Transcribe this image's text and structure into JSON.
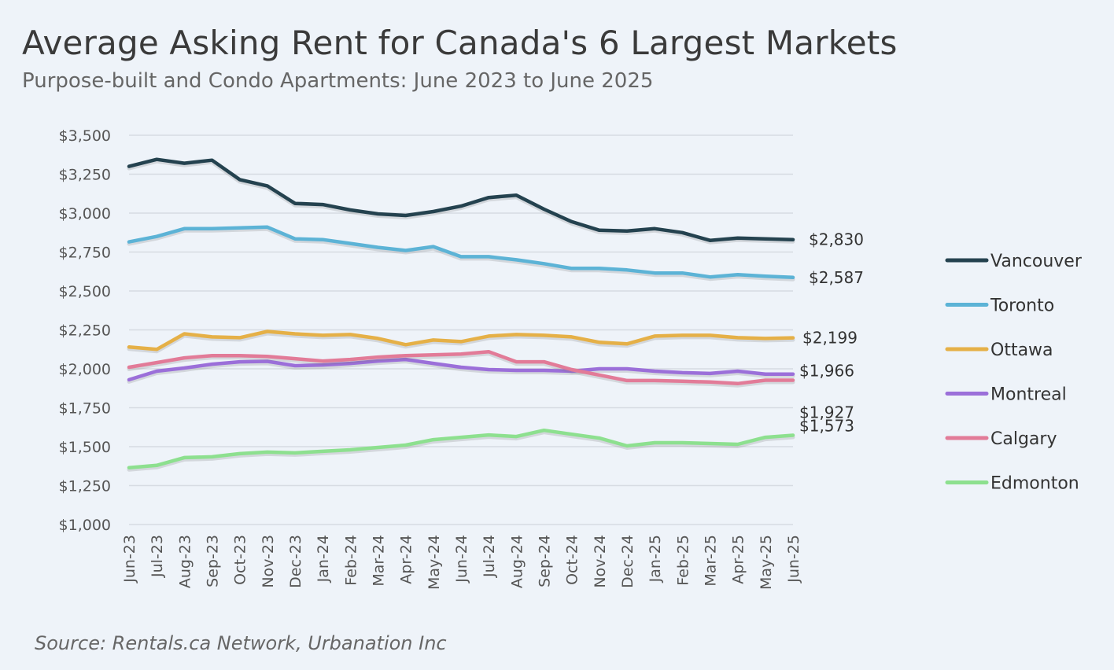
{
  "chart_data": {
    "type": "line",
    "title": "Average Asking Rent for Canada's 6 Largest Markets",
    "subtitle": "Purpose-built and Condo Apartments: June 2023 to June 2025",
    "source": "Source: Rentals.ca Network, Urbanation Inc",
    "xlabel": "",
    "ylabel": "",
    "ylim": [
      1000,
      3500
    ],
    "yticks": [
      1000,
      1250,
      1500,
      1750,
      2000,
      2250,
      2500,
      2750,
      3000,
      3250,
      3500
    ],
    "ytick_labels": [
      "$1,000",
      "$1,250",
      "$1,500",
      "$1,750",
      "$2,000",
      "$2,250",
      "$2,500",
      "$2,750",
      "$3,000",
      "$3,250",
      "$3,500"
    ],
    "grid": true,
    "legend_position": "right",
    "categories": [
      "Jun-23",
      "Jul-23",
      "Aug-23",
      "Sep-23",
      "Oct-23",
      "Nov-23",
      "Dec-23",
      "Jan-24",
      "Feb-24",
      "Mar-24",
      "Apr-24",
      "May-24",
      "Jun-24",
      "Jul-24",
      "Aug-24",
      "Sep-24",
      "Oct-24",
      "Nov-24",
      "Dec-24",
      "Jan-25",
      "Feb-25",
      "Mar-25",
      "Apr-25",
      "May-25",
      "Jun-25"
    ],
    "series": [
      {
        "name": "Vancouver",
        "color": "#24424f",
        "end_label": "$2,830",
        "values": [
          3300,
          3345,
          3320,
          3340,
          3215,
          3175,
          3062,
          3055,
          3020,
          2995,
          2985,
          3010,
          3045,
          3100,
          3115,
          3025,
          2945,
          2890,
          2885,
          2900,
          2875,
          2825,
          2840,
          2835,
          2830
        ]
      },
      {
        "name": "Toronto",
        "color": "#5cb3d6",
        "end_label": "$2,587",
        "values": [
          2815,
          2850,
          2900,
          2900,
          2905,
          2910,
          2835,
          2830,
          2805,
          2780,
          2760,
          2785,
          2720,
          2720,
          2700,
          2675,
          2645,
          2645,
          2635,
          2615,
          2615,
          2590,
          2605,
          2595,
          2587
        ]
      },
      {
        "name": "Ottawa",
        "color": "#e5b047",
        "end_label": "$2,199",
        "values": [
          2140,
          2125,
          2225,
          2205,
          2200,
          2240,
          2225,
          2215,
          2220,
          2195,
          2155,
          2185,
          2175,
          2210,
          2220,
          2215,
          2205,
          2170,
          2160,
          2210,
          2215,
          2215,
          2200,
          2195,
          2199
        ]
      },
      {
        "name": "Montreal",
        "color": "#9b6fd9",
        "end_label": "$1,966",
        "values": [
          1930,
          1985,
          2005,
          2030,
          2045,
          2048,
          2020,
          2025,
          2035,
          2050,
          2060,
          2035,
          2010,
          1995,
          1990,
          1990,
          1985,
          2000,
          2000,
          1985,
          1975,
          1970,
          1985,
          1966,
          1966
        ]
      },
      {
        "name": "Calgary",
        "color": "#e27b98",
        "end_label": "$1,927",
        "values": [
          2010,
          2040,
          2070,
          2085,
          2085,
          2080,
          2065,
          2050,
          2060,
          2075,
          2085,
          2090,
          2095,
          2110,
          2045,
          2045,
          1995,
          1960,
          1925,
          1925,
          1920,
          1915,
          1905,
          1927,
          1927
        ]
      },
      {
        "name": "Edmonton",
        "color": "#8de08f",
        "end_label": "$1,573",
        "values": [
          1365,
          1380,
          1430,
          1435,
          1455,
          1465,
          1460,
          1470,
          1480,
          1495,
          1510,
          1545,
          1560,
          1575,
          1565,
          1605,
          1580,
          1555,
          1505,
          1525,
          1525,
          1520,
          1515,
          1560,
          1573
        ]
      }
    ]
  }
}
